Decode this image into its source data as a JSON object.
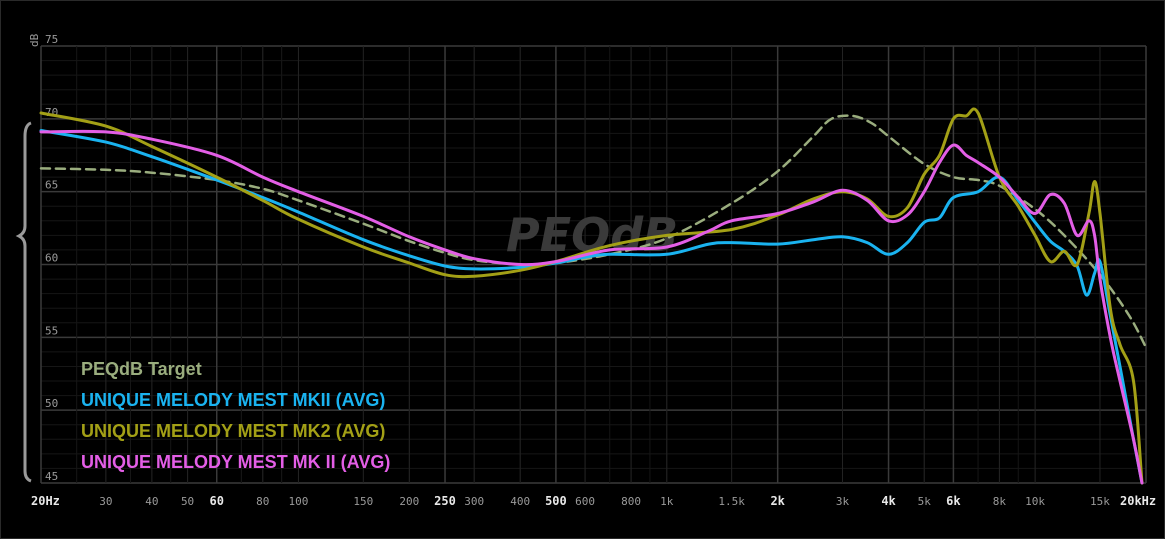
{
  "chart_data": {
    "type": "line",
    "title": "",
    "watermark": "PEQdB",
    "xscale": "log",
    "xlim": [
      20,
      20000
    ],
    "ylim": [
      45,
      75
    ],
    "ylabel": "dB",
    "y_ticks": [
      75,
      70,
      65,
      60,
      55,
      50,
      45
    ],
    "x_ticks": [
      {
        "f": 20,
        "label": "20Hz",
        "major": true
      },
      {
        "f": 30,
        "label": "30"
      },
      {
        "f": 40,
        "label": "40"
      },
      {
        "f": 50,
        "label": "50"
      },
      {
        "f": 60,
        "label": "60",
        "major": true
      },
      {
        "f": 80,
        "label": "80"
      },
      {
        "f": 100,
        "label": "100"
      },
      {
        "f": 150,
        "label": "150"
      },
      {
        "f": 200,
        "label": "200"
      },
      {
        "f": 250,
        "label": "250",
        "major": true
      },
      {
        "f": 300,
        "label": "300"
      },
      {
        "f": 400,
        "label": "400"
      },
      {
        "f": 500,
        "label": "500",
        "major": true
      },
      {
        "f": 600,
        "label": "600"
      },
      {
        "f": 800,
        "label": "800"
      },
      {
        "f": 1000,
        "label": "1k"
      },
      {
        "f": 1500,
        "label": "1.5k"
      },
      {
        "f": 2000,
        "label": "2k",
        "major": true
      },
      {
        "f": 3000,
        "label": "3k"
      },
      {
        "f": 4000,
        "label": "4k",
        "major": true
      },
      {
        "f": 5000,
        "label": "5k"
      },
      {
        "f": 6000,
        "label": "6k",
        "major": true
      },
      {
        "f": 8000,
        "label": "8k"
      },
      {
        "f": 10000,
        "label": "10k"
      },
      {
        "f": 15000,
        "label": "15k"
      },
      {
        "f": 20000,
        "label": "20kHz",
        "major": true
      }
    ],
    "grid": true,
    "legend_position": "bottom-left",
    "series": [
      {
        "name": "PEQdB Target",
        "color": "#9aad7e",
        "dashed": true,
        "points": [
          [
            20,
            66.6
          ],
          [
            30,
            66.5
          ],
          [
            40,
            66.3
          ],
          [
            60,
            65.8
          ],
          [
            80,
            65.2
          ],
          [
            100,
            64.4
          ],
          [
            150,
            62.8
          ],
          [
            200,
            61.6
          ],
          [
            250,
            60.8
          ],
          [
            300,
            60.3
          ],
          [
            400,
            60.0
          ],
          [
            500,
            60.1
          ],
          [
            700,
            60.7
          ],
          [
            1000,
            61.8
          ],
          [
            1500,
            64.2
          ],
          [
            2000,
            66.4
          ],
          [
            2500,
            68.8
          ],
          [
            2800,
            70.0
          ],
          [
            3200,
            70.2
          ],
          [
            3600,
            69.7
          ],
          [
            4000,
            68.8
          ],
          [
            5000,
            66.9
          ],
          [
            6000,
            66.0
          ],
          [
            7000,
            65.8
          ],
          [
            8000,
            65.4
          ],
          [
            10000,
            63.8
          ],
          [
            12000,
            62.0
          ],
          [
            15000,
            59.3
          ],
          [
            18000,
            56.5
          ],
          [
            20000,
            54.3
          ]
        ]
      },
      {
        "name": "UNIQUE MELODY MEST MKII (AVG)",
        "color": "#1ab3f0",
        "dashed": false,
        "points": [
          [
            20,
            69.2
          ],
          [
            30,
            68.4
          ],
          [
            40,
            67.4
          ],
          [
            60,
            65.8
          ],
          [
            80,
            64.6
          ],
          [
            100,
            63.6
          ],
          [
            150,
            61.7
          ],
          [
            200,
            60.6
          ],
          [
            250,
            59.9
          ],
          [
            300,
            59.7
          ],
          [
            400,
            59.8
          ],
          [
            500,
            60.1
          ],
          [
            600,
            60.5
          ],
          [
            700,
            60.7
          ],
          [
            1000,
            60.7
          ],
          [
            1300,
            61.4
          ],
          [
            1500,
            61.5
          ],
          [
            2000,
            61.4
          ],
          [
            2500,
            61.7
          ],
          [
            3000,
            61.9
          ],
          [
            3500,
            61.5
          ],
          [
            4000,
            60.7
          ],
          [
            4500,
            61.5
          ],
          [
            5000,
            62.9
          ],
          [
            5500,
            63.2
          ],
          [
            6000,
            64.6
          ],
          [
            7000,
            65.0
          ],
          [
            8000,
            66.0
          ],
          [
            9000,
            64.4
          ],
          [
            10000,
            62.9
          ],
          [
            11000,
            61.6
          ],
          [
            12000,
            60.9
          ],
          [
            13000,
            59.9
          ],
          [
            13800,
            57.9
          ],
          [
            14500,
            59.4
          ],
          [
            15000,
            60.2
          ],
          [
            16000,
            56.5
          ],
          [
            17000,
            53.0
          ],
          [
            18500,
            48.0
          ],
          [
            19500,
            45.0
          ]
        ]
      },
      {
        "name": "UNIQUE MELODY MEST MK2 (AVG)",
        "color": "#a3a016",
        "dashed": false,
        "points": [
          [
            20,
            70.4
          ],
          [
            30,
            69.5
          ],
          [
            40,
            68.1
          ],
          [
            60,
            66.0
          ],
          [
            80,
            64.4
          ],
          [
            100,
            63.1
          ],
          [
            150,
            61.2
          ],
          [
            200,
            60.1
          ],
          [
            250,
            59.3
          ],
          [
            300,
            59.2
          ],
          [
            400,
            59.6
          ],
          [
            500,
            60.2
          ],
          [
            700,
            61.3
          ],
          [
            1000,
            62.0
          ],
          [
            1500,
            62.4
          ],
          [
            2000,
            63.4
          ],
          [
            2500,
            64.5
          ],
          [
            3000,
            65.0
          ],
          [
            3500,
            64.5
          ],
          [
            4000,
            63.3
          ],
          [
            4500,
            63.9
          ],
          [
            5000,
            66.2
          ],
          [
            5500,
            67.5
          ],
          [
            6000,
            70.0
          ],
          [
            6500,
            70.2
          ],
          [
            7000,
            70.4
          ],
          [
            8000,
            66.0
          ],
          [
            9000,
            64.0
          ],
          [
            10000,
            62.0
          ],
          [
            11000,
            60.2
          ],
          [
            12000,
            60.9
          ],
          [
            13000,
            60.0
          ],
          [
            14000,
            63.5
          ],
          [
            14500,
            65.7
          ],
          [
            15000,
            63.5
          ],
          [
            16000,
            57.0
          ],
          [
            17000,
            54.5
          ],
          [
            18500,
            52.0
          ],
          [
            19500,
            45.0
          ]
        ]
      },
      {
        "name": "UNIQUE MELODY MEST MK II (AVG)",
        "color": "#e35ee6",
        "dashed": false,
        "points": [
          [
            20,
            69.1
          ],
          [
            30,
            69.1
          ],
          [
            40,
            68.6
          ],
          [
            60,
            67.5
          ],
          [
            80,
            66.0
          ],
          [
            100,
            65.0
          ],
          [
            150,
            63.3
          ],
          [
            200,
            61.9
          ],
          [
            250,
            61.0
          ],
          [
            300,
            60.4
          ],
          [
            400,
            60.0
          ],
          [
            500,
            60.2
          ],
          [
            700,
            61.0
          ],
          [
            1000,
            61.2
          ],
          [
            1300,
            62.3
          ],
          [
            1500,
            63.0
          ],
          [
            2000,
            63.5
          ],
          [
            2500,
            64.3
          ],
          [
            3000,
            65.1
          ],
          [
            3500,
            64.4
          ],
          [
            4000,
            63.0
          ],
          [
            4500,
            63.4
          ],
          [
            5000,
            65.0
          ],
          [
            5500,
            67.0
          ],
          [
            6000,
            68.2
          ],
          [
            6500,
            67.5
          ],
          [
            7000,
            67.0
          ],
          [
            8000,
            66.0
          ],
          [
            9000,
            64.6
          ],
          [
            10000,
            63.5
          ],
          [
            11000,
            64.8
          ],
          [
            12000,
            64.2
          ],
          [
            13000,
            62.0
          ],
          [
            14000,
            63.0
          ],
          [
            14500,
            62.0
          ],
          [
            15000,
            59.0
          ],
          [
            16000,
            55.0
          ],
          [
            17000,
            52.0
          ],
          [
            18500,
            48.0
          ],
          [
            19500,
            45.0
          ]
        ]
      }
    ]
  }
}
